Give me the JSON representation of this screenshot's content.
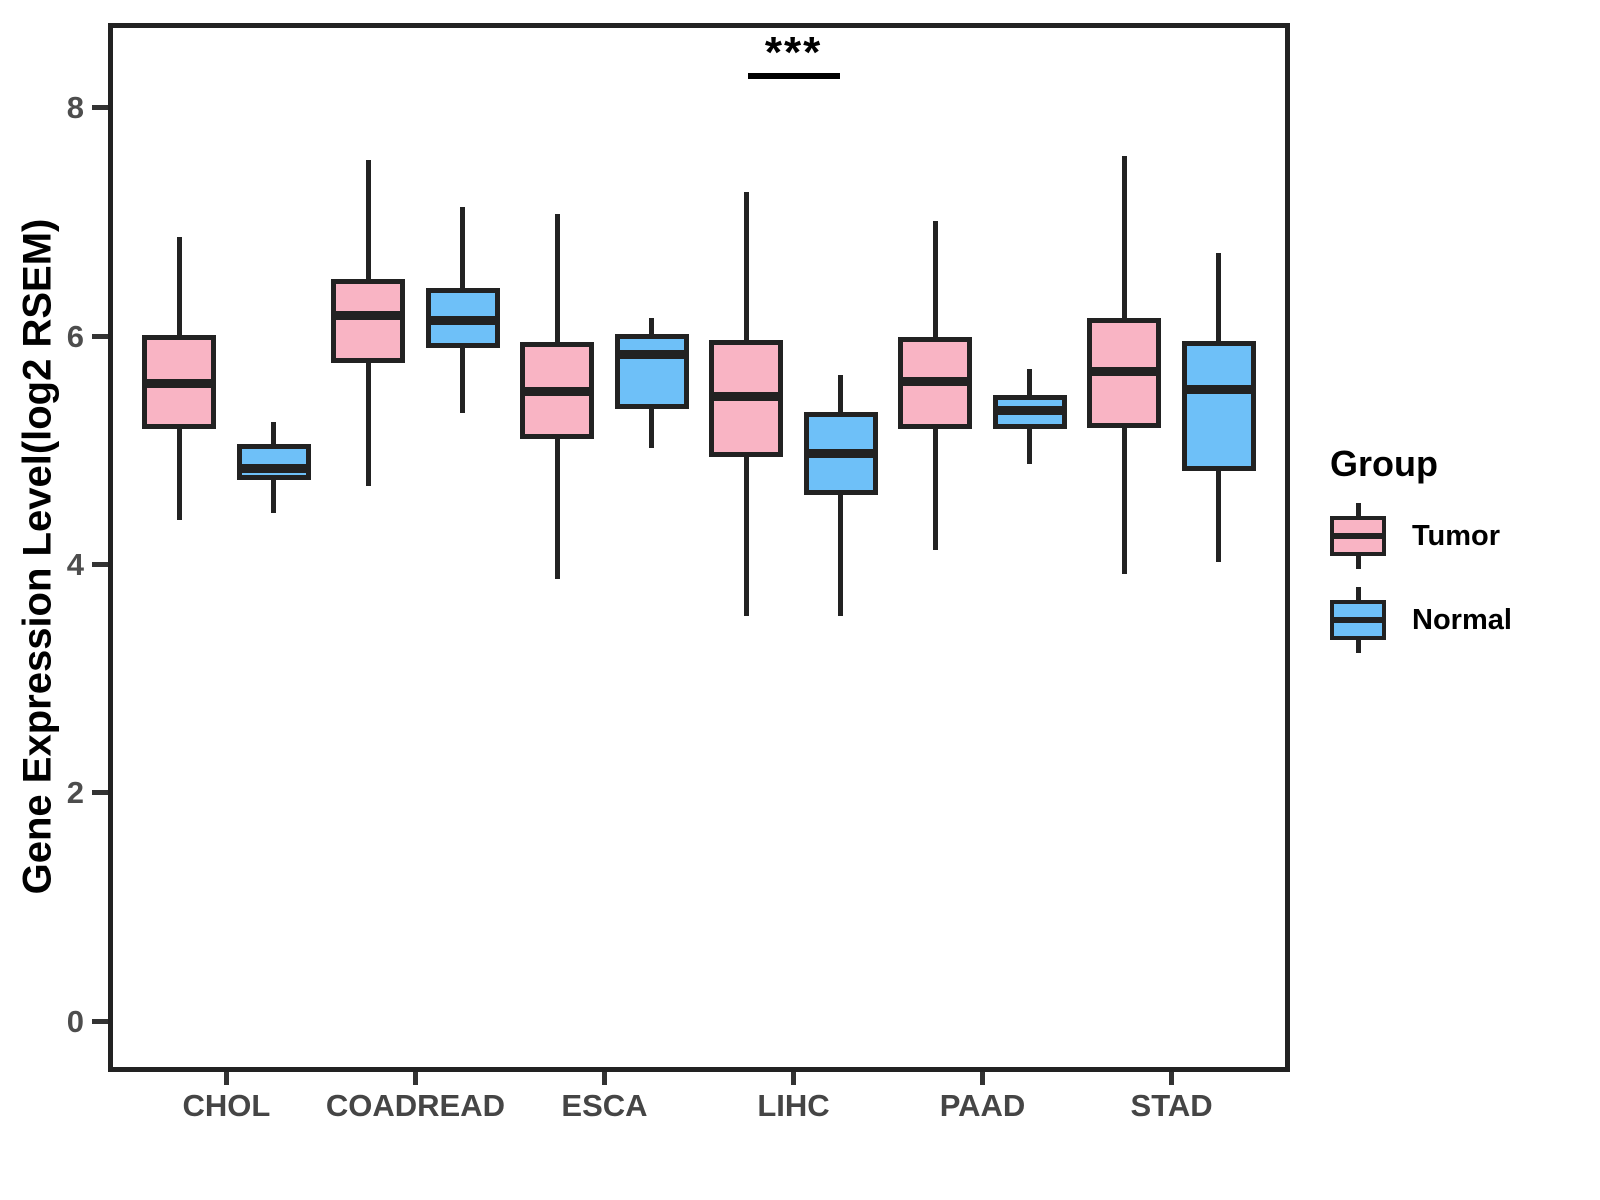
{
  "chart_data": {
    "type": "boxplot",
    "title": "",
    "xlabel": "",
    "ylabel": "Gene Expression Level(log2 RSEM)",
    "categories": [
      "CHOL",
      "COADREAD",
      "ESCA",
      "LIHC",
      "PAAD",
      "STAD"
    ],
    "yticks": [
      0,
      2,
      4,
      6,
      8
    ],
    "ylim": [
      -0.4,
      8.7
    ],
    "grid": "off",
    "legend_position": "right",
    "series": [
      {
        "name": "Tumor",
        "color": "#F9B4C4",
        "boxes": [
          {
            "category": "CHOL",
            "min": 4.39,
            "q1": 5.19,
            "median": 5.59,
            "q3": 6.01,
            "max": 6.87
          },
          {
            "category": "COADREAD",
            "min": 4.69,
            "q1": 5.77,
            "median": 6.18,
            "q3": 6.5,
            "max": 7.54
          },
          {
            "category": "ESCA",
            "min": 3.87,
            "q1": 5.1,
            "median": 5.52,
            "q3": 5.95,
            "max": 7.07
          },
          {
            "category": "LIHC",
            "min": 3.55,
            "q1": 4.94,
            "median": 5.47,
            "q3": 5.97,
            "max": 7.26
          },
          {
            "category": "PAAD",
            "min": 4.13,
            "q1": 5.19,
            "median": 5.6,
            "q3": 5.99,
            "max": 7.01
          },
          {
            "category": "STAD",
            "min": 3.92,
            "q1": 5.2,
            "median": 5.69,
            "q3": 6.16,
            "max": 7.58
          }
        ]
      },
      {
        "name": "Normal",
        "color": "#6EC0F8",
        "boxes": [
          {
            "category": "CHOL",
            "min": 4.45,
            "q1": 4.74,
            "median": 4.84,
            "q3": 5.06,
            "max": 5.25
          },
          {
            "category": "COADREAD",
            "min": 5.33,
            "q1": 5.9,
            "median": 6.14,
            "q3": 6.42,
            "max": 7.13
          },
          {
            "category": "ESCA",
            "min": 5.02,
            "q1": 5.36,
            "median": 5.84,
            "q3": 6.02,
            "max": 6.16
          },
          {
            "category": "LIHC",
            "min": 3.55,
            "q1": 4.61,
            "median": 4.97,
            "q3": 5.34,
            "max": 5.66
          },
          {
            "category": "PAAD",
            "min": 4.88,
            "q1": 5.19,
            "median": 5.35,
            "q3": 5.49,
            "max": 5.71
          },
          {
            "category": "STAD",
            "min": 4.02,
            "q1": 4.82,
            "median": 5.53,
            "q3": 5.96,
            "max": 6.73
          }
        ]
      }
    ],
    "annotation": {
      "text": "***",
      "category": "LIHC",
      "category_index": 3
    }
  },
  "legend": {
    "title": "Group",
    "entries": [
      {
        "label": "Tumor",
        "color": "#F9B4C4"
      },
      {
        "label": "Normal",
        "color": "#6EC0F8"
      }
    ]
  },
  "colors": {
    "stroke": "#222222",
    "tick_label": "#4d4d4d",
    "axis_title": "#000000",
    "background": "#ffffff"
  }
}
